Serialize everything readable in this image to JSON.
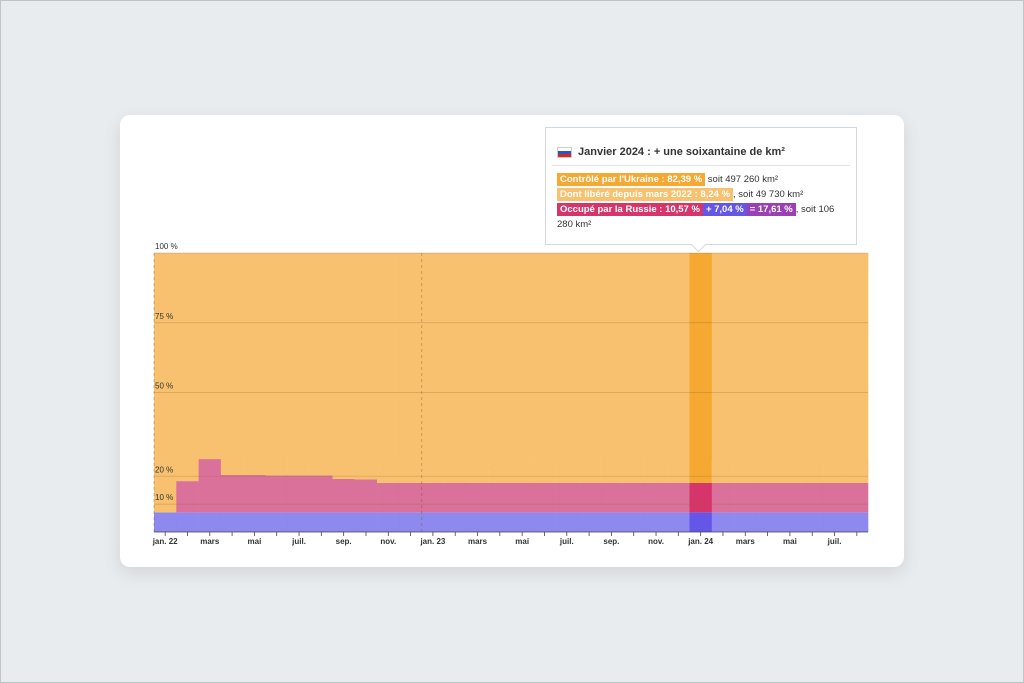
{
  "chart_data": {
    "type": "stacked-area-columns",
    "categories": [
      "jan. 22",
      null,
      "mars",
      null,
      "mai",
      null,
      "juil.",
      null,
      "sep.",
      null,
      "nov.",
      null,
      "jan. 23",
      null,
      "mars",
      null,
      "mai",
      null,
      "juil.",
      null,
      "sep.",
      null,
      "nov.",
      null,
      "jan. 24",
      null,
      "mars",
      null,
      "mai",
      null,
      "juil.",
      null
    ],
    "series": [
      {
        "color": "#8d89ef",
        "highlight_color": "#6457e8",
        "values": [
          7.04,
          7.04,
          7.04,
          7.04,
          7.04,
          7.04,
          7.04,
          7.04,
          7.04,
          7.04,
          7.04,
          7.04,
          7.04,
          7.04,
          7.04,
          7.04,
          7.04,
          7.04,
          7.04,
          7.04,
          7.04,
          7.04,
          7.04,
          7.04,
          7.04,
          7.04,
          7.04,
          7.04,
          7.04,
          7.04,
          7.04,
          7.04
        ]
      },
      {
        "color": "#d9719a",
        "highlight_color": "#d6356c",
        "values": [
          0,
          11.2,
          19.1,
          13.4,
          13.4,
          13.3,
          13.3,
          13.3,
          12.0,
          11.8,
          10.6,
          10.6,
          10.6,
          10.6,
          10.6,
          10.6,
          10.6,
          10.6,
          10.6,
          10.6,
          10.6,
          10.6,
          10.6,
          10.6,
          10.57,
          10.57,
          10.57,
          10.57,
          10.57,
          10.57,
          10.57,
          10.57
        ]
      },
      {
        "color": "#f7c16f",
        "highlight_color": "#f5a832",
        "values": [
          92.96,
          81.76,
          73.86,
          79.56,
          79.56,
          79.66,
          79.66,
          79.66,
          80.96,
          81.16,
          82.36,
          82.36,
          82.36,
          82.36,
          82.36,
          82.36,
          82.36,
          82.36,
          82.36,
          82.36,
          82.36,
          82.36,
          82.36,
          82.36,
          82.39,
          82.39,
          82.39,
          82.39,
          82.39,
          82.39,
          82.39,
          82.39
        ]
      }
    ],
    "hatched": {
      "color": "#fbe0b5",
      "values": [
        0,
        0,
        0,
        5.7,
        5.7,
        5.6,
        5.6,
        5.6,
        7.2,
        7.4,
        8.5,
        8.5,
        8.5,
        8.5,
        8.5,
        8.5,
        8.5,
        8.5,
        8.5,
        8.5,
        8.5,
        8.5,
        8.5,
        8.5,
        8.24,
        8.24,
        8.24,
        8.24,
        8.24,
        8.24,
        8.24,
        8.24
      ]
    },
    "highlight_index": 24,
    "ylim": [
      0,
      100
    ],
    "yticks": [
      {
        "value": 10,
        "label": "10 %"
      },
      {
        "value": 20,
        "label": "20 %"
      },
      {
        "value": 50,
        "label": "50 %"
      },
      {
        "value": 75,
        "label": "75 %"
      },
      {
        "value": 100,
        "label": "100 %"
      }
    ],
    "grid": true
  },
  "tooltip": {
    "title": "Janvier 2024 : + une soixantaine de km²",
    "lines": [
      [
        "Contrôlé par l'Ukraine : 82,39 %",
        " soit 497 260 km²"
      ],
      [
        "Dont libéré depuis mars 2022 : 8,24 %",
        ", soit 49 730 km²"
      ],
      [
        "Occupé par la Russie : 10,57 %",
        "+ 7,04 %",
        "= 17,61 %",
        ", soit 106 280 km²"
      ]
    ]
  }
}
